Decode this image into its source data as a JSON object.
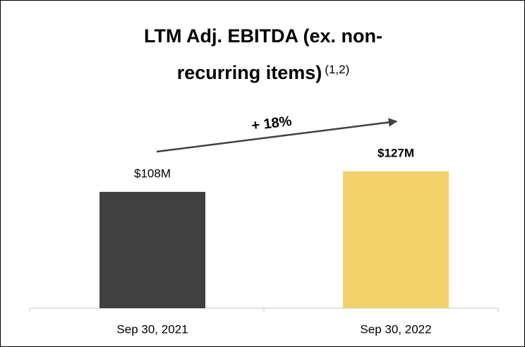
{
  "chart_data": {
    "type": "bar",
    "title": "LTM Adj. EBITDA (ex. non-recurring items)",
    "title_note": "(1,2)",
    "categories": [
      "Sep 30, 2021",
      "Sep 30, 2022"
    ],
    "values": [
      108,
      127
    ],
    "value_labels": [
      "$108M",
      "$127M"
    ],
    "colors": [
      "#404040",
      "#f2d36b"
    ],
    "annotation": "+ 18%"
  }
}
